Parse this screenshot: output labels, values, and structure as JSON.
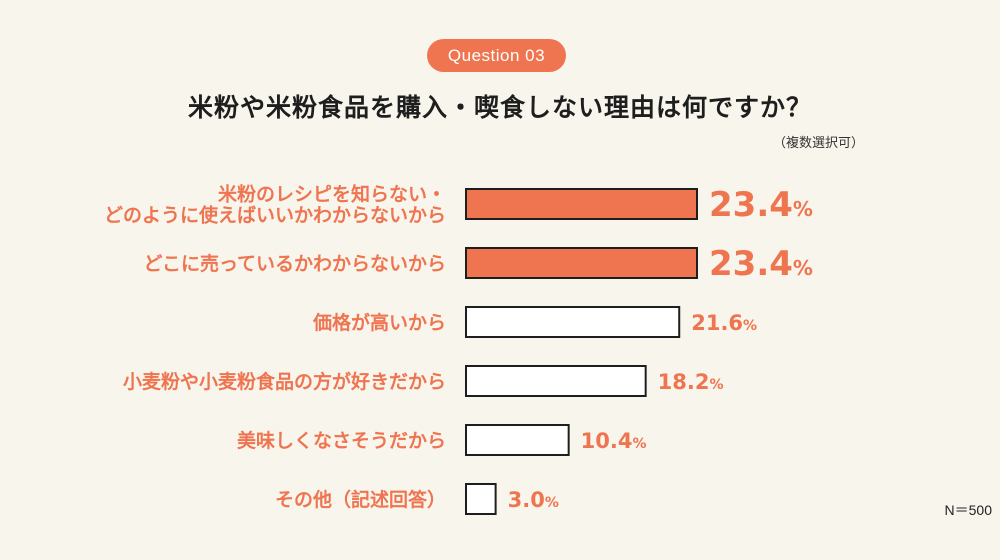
{
  "header": {
    "badge": "Question 03",
    "title": "米粉や米粉食品を購入・喫食しない理由は何ですか？",
    "subtitle": "（複数選択可）"
  },
  "footer": {
    "sample_size": "N＝500"
  },
  "colors": {
    "accent": "#ef7450",
    "highlight_fill": "#ef7450",
    "normal_fill": "#ffffff",
    "bar_stroke": "#1e1e1e",
    "background": "#f8f5ec"
  },
  "chart_data": {
    "type": "bar",
    "orientation": "horizontal",
    "unit": "%",
    "categories": [
      [
        "米粉のレシピを知らない・",
        "どのように使えばいいかわからないから"
      ],
      [
        "どこに売っているかわからないから"
      ],
      [
        "価格が高いから"
      ],
      [
        "小麦粉や小麦粉食品の方が好きだから"
      ],
      [
        "美味しくなさそうだから"
      ],
      [
        "その他（記述回答）"
      ]
    ],
    "values": [
      23.4,
      23.4,
      21.6,
      18.2,
      10.4,
      3.0
    ],
    "value_labels": [
      "23.4",
      "23.4",
      "21.6",
      "18.2",
      "10.4",
      "3.0"
    ],
    "highlighted": [
      true,
      true,
      false,
      false,
      false,
      false
    ],
    "xlim": [
      0,
      100
    ],
    "grid": false,
    "legend": "none"
  }
}
